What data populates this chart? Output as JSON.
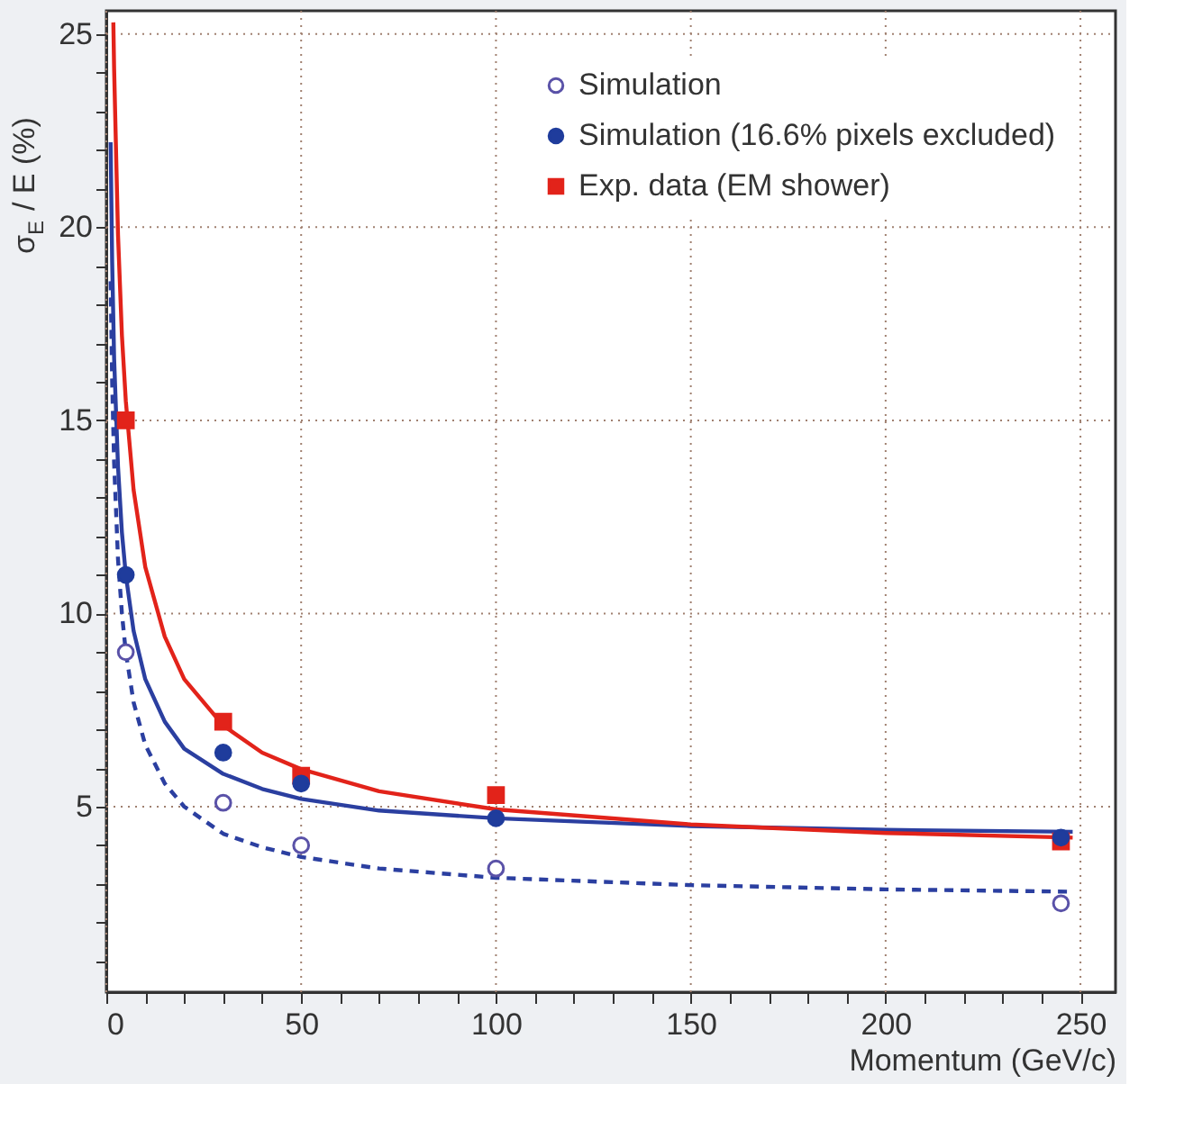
{
  "chart_data": {
    "type": "scatter",
    "xlabel": "Momentum (GeV/c)",
    "ylabel": "σ$_{E}$ / E (%)",
    "xlim": [
      0,
      259
    ],
    "ylim": [
      0.2,
      25.6
    ],
    "xticks": [
      0,
      {
        "value": 10,
        "label": null
      },
      {
        "value": 20,
        "label": null
      },
      {
        "value": 30,
        "label": null
      },
      {
        "value": 40,
        "label": null
      },
      50,
      {
        "value": 60,
        "label": null
      },
      {
        "value": 70,
        "label": null
      },
      {
        "value": 80,
        "label": null
      },
      {
        "value": 90,
        "label": null
      },
      100,
      {
        "value": 110,
        "label": null
      },
      {
        "value": 120,
        "label": null
      },
      {
        "value": 130,
        "label": null
      },
      {
        "value": 140,
        "label": null
      },
      150,
      {
        "value": 160,
        "label": null
      },
      {
        "value": 170,
        "label": null
      },
      {
        "value": 180,
        "label": null
      },
      {
        "value": 190,
        "label": null
      },
      200,
      {
        "value": 210,
        "label": null
      },
      {
        "value": 220,
        "label": null
      },
      {
        "value": 230,
        "label": null
      },
      {
        "value": 240,
        "label": null
      },
      250
    ],
    "yticks": [
      {
        "value": 1,
        "label": null
      },
      {
        "value": 2,
        "label": null
      },
      {
        "value": 3,
        "label": null
      },
      {
        "value": 4,
        "label": null
      },
      5,
      {
        "value": 6,
        "label": null
      },
      {
        "value": 7,
        "label": null
      },
      {
        "value": 8,
        "label": null
      },
      {
        "value": 9,
        "label": null
      },
      10,
      {
        "value": 11,
        "label": null
      },
      {
        "value": 12,
        "label": null
      },
      {
        "value": 13,
        "label": null
      },
      {
        "value": 14,
        "label": null
      },
      15,
      {
        "value": 16,
        "label": null
      },
      {
        "value": 17,
        "label": null
      },
      {
        "value": 18,
        "label": null
      },
      {
        "value": 19,
        "label": null
      },
      20,
      {
        "value": 21,
        "label": null
      },
      {
        "value": 22,
        "label": null
      },
      {
        "value": 23,
        "label": null
      },
      {
        "value": 24,
        "label": null
      },
      25
    ],
    "grid": true,
    "legend": "top right",
    "series": [
      {
        "name": "Simulation",
        "marker": "circle",
        "color": "#5a52a8",
        "x": [
          5,
          30,
          50,
          100,
          245
        ],
        "values": [
          9,
          5.1,
          4.0,
          3.4,
          2.5
        ]
      },
      {
        "name": "Simulation (16.6% pixels excluded)",
        "marker": "circle",
        "color": "#1f3c9c",
        "x": [
          5,
          30,
          50,
          100,
          245
        ],
        "values": [
          11,
          6.4,
          5.6,
          4.7,
          4.2
        ]
      },
      {
        "name": "Exp. data (EM shower)",
        "marker": "square",
        "color": "#e2231a",
        "x": [
          5,
          30,
          50,
          100,
          245
        ],
        "values": [
          15,
          7.2,
          5.8,
          5.3,
          4.1
        ]
      },
      {
        "type": "line",
        "line_style": "dashed",
        "color": "#2b3fa0",
        "x": [
          1.1,
          1.5,
          2,
          3,
          4,
          5,
          7,
          10,
          15,
          20,
          30,
          40,
          50,
          70,
          100,
          150,
          200,
          248
        ],
        "values": [
          18.6,
          16.0,
          13.9,
          11.4,
          10.0,
          9.0,
          7.7,
          6.6,
          5.6,
          5.0,
          4.3,
          3.95,
          3.7,
          3.4,
          3.16,
          2.97,
          2.86,
          2.8
        ]
      },
      {
        "type": "line",
        "line_style": "solid",
        "color": "#2b3fa0",
        "x": [
          1.1,
          1.5,
          2,
          3,
          4,
          5,
          7,
          10,
          15,
          20,
          30,
          40,
          50,
          70,
          100,
          150,
          200,
          248
        ],
        "values": [
          22.2,
          19.1,
          16.6,
          13.8,
          12.1,
          11.0,
          9.55,
          8.3,
          7.2,
          6.5,
          5.85,
          5.46,
          5.2,
          4.9,
          4.7,
          4.5,
          4.4,
          4.35
        ]
      },
      {
        "type": "line",
        "line_style": "solid",
        "color": "#e2231a",
        "x": [
          1.8,
          2,
          3,
          4,
          5,
          7,
          10,
          15,
          20,
          30,
          40,
          50,
          70,
          100,
          150,
          200,
          248
        ],
        "values": [
          25.3,
          24.1,
          19.8,
          17.2,
          15.5,
          13.2,
          11.2,
          9.4,
          8.3,
          7.1,
          6.4,
          5.97,
          5.4,
          4.93,
          4.54,
          4.32,
          4.2
        ]
      }
    ]
  }
}
